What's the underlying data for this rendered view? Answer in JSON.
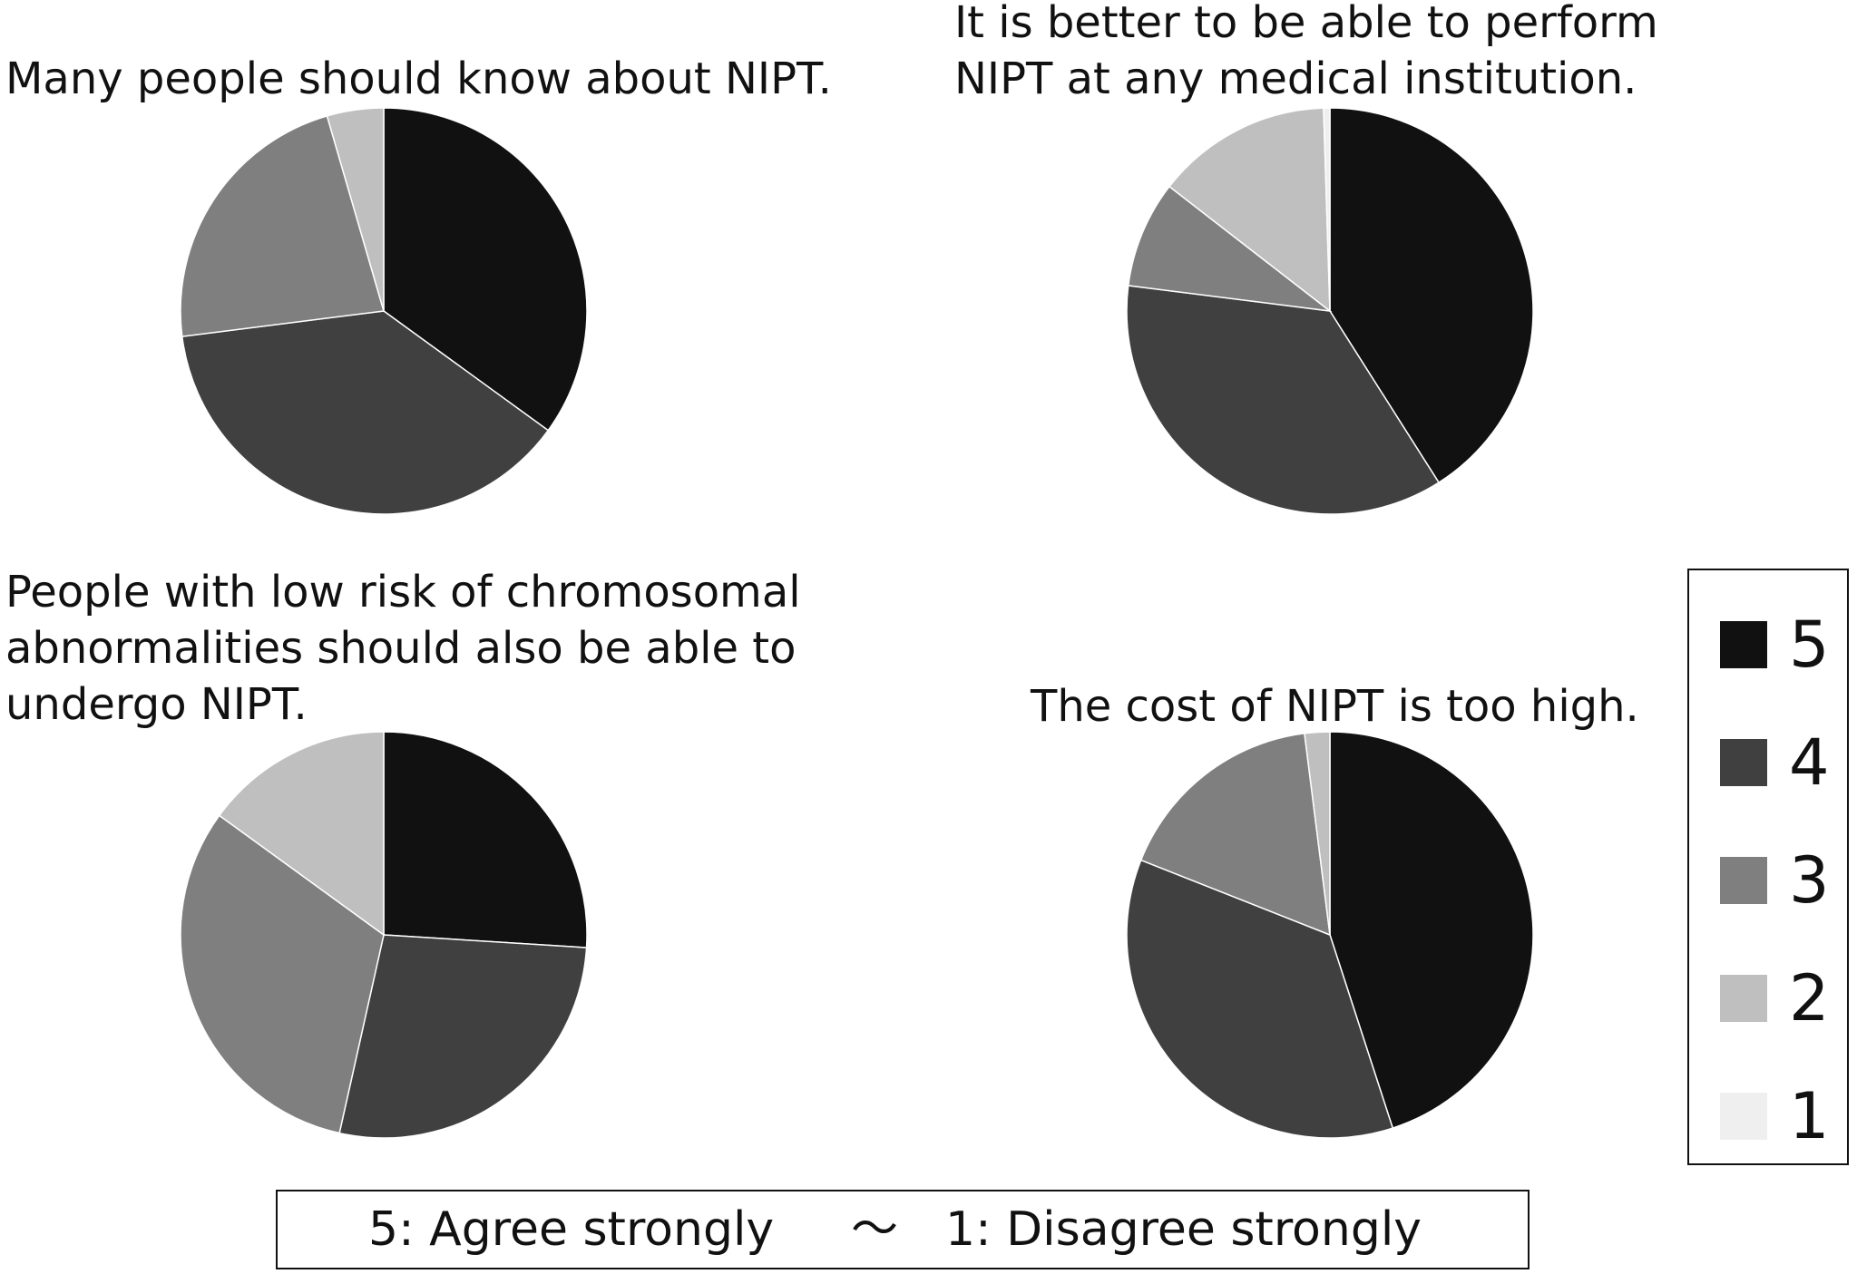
{
  "chart_data": [
    {
      "type": "pie",
      "title": "Many people should know about NIPT.",
      "categories": [
        "5",
        "4",
        "3",
        "2",
        "1"
      ],
      "values": [
        35.0,
        38.0,
        22.5,
        4.5,
        0.0
      ]
    },
    {
      "type": "pie",
      "title": "It is better to be able to perform NIPT at any medical institution.",
      "categories": [
        "5",
        "4",
        "3",
        "2",
        "1"
      ],
      "values": [
        41.0,
        36.0,
        8.5,
        14.0,
        0.5
      ]
    },
    {
      "type": "pie",
      "title": "People with low risk of chromosomal abnormalities should also be able to undergo NIPT.",
      "categories": [
        "5",
        "4",
        "3",
        "2",
        "1"
      ],
      "values": [
        26.0,
        27.5,
        31.5,
        15.0,
        0.0
      ]
    },
    {
      "type": "pie",
      "title": "The cost of NIPT is too high.",
      "categories": [
        "5",
        "4",
        "3",
        "2",
        "1"
      ],
      "values": [
        45.0,
        36.0,
        17.0,
        2.0,
        0.0
      ]
    }
  ],
  "titles": [
    [
      "Many people should know about NIPT."
    ],
    [
      "It is better to be able to perform",
      "NIPT at any medical institution."
    ],
    [
      "People with low risk of chromosomal",
      "abnormalities should also be able to",
      "undergo NIPT."
    ],
    [
      "The cost of NIPT is too high."
    ]
  ],
  "legend": {
    "items": [
      {
        "label": "5",
        "color": "#111111"
      },
      {
        "label": "4",
        "color": "#404040"
      },
      {
        "label": "3",
        "color": "#7f7f7f"
      },
      {
        "label": "2",
        "color": "#bfbfbf"
      },
      {
        "label": "1",
        "color": "#efefef"
      }
    ]
  },
  "footnote": {
    "left": "5: Agree strongly",
    "sep": "〜",
    "right": "1: Disagree strongly"
  }
}
